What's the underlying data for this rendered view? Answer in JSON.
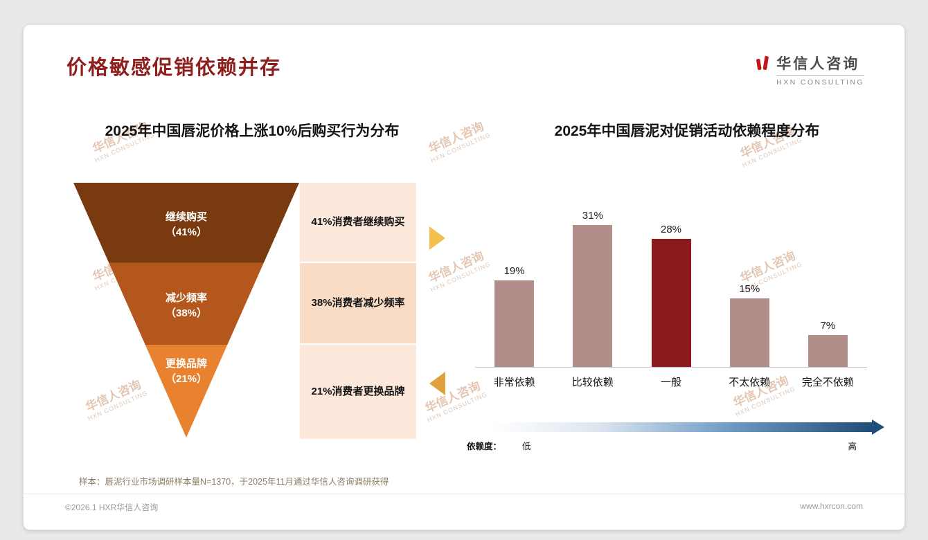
{
  "slide": {
    "title": "价格敏感促销依赖并存",
    "logo": {
      "name": "华信人咨询",
      "tagline": "HXN CONSULTING"
    },
    "watermark": {
      "line1": "华信人咨询",
      "line2": "HXN CONSULTING"
    },
    "sample_note": "样本：唇泥行业市场调研样本量N=1370，于2025年11月通过华信人咨询调研获得",
    "footer": {
      "copyright": "©2026.1 HXR华信人咨询",
      "website": "www.hxrcon.com"
    }
  },
  "colors": {
    "accent_red": "#8e1f1f",
    "connector_arrow_right": "#f2c04d",
    "connector_arrow_left": "#dfa23a",
    "gradient_mid": "#6f9cc6",
    "gradient_to": "#1f4e79",
    "card_background": "#ffffff",
    "page_background": "#e9e9e9"
  },
  "chart_data": [
    {
      "type": "funnel",
      "title": "2025年中国唇泥价格上涨10%后购买行为分布",
      "categories": [
        "继续购买",
        "减少频率",
        "更换品牌"
      ],
      "values": [
        41,
        38,
        21
      ],
      "unit": "%",
      "value_labels": [
        "（41%）",
        "（38%）",
        "（21%）"
      ],
      "segment_colors": [
        "#7a3a10",
        "#b4571c",
        "#e8822e"
      ],
      "annotations": [
        "41%消费者继续购买",
        "38%消费者减少频率",
        "21%消费者更换品牌"
      ],
      "annotation_bg": [
        "#fce9dc",
        "#f8dcc6",
        "#fce9dc"
      ]
    },
    {
      "type": "bar",
      "title": "2025年中国唇泥对促销活动依赖程度分布",
      "categories": [
        "非常依赖",
        "比较依赖",
        "一般",
        "不太依赖",
        "完全不依赖"
      ],
      "values": [
        19,
        31,
        28,
        15,
        7
      ],
      "unit": "%",
      "ylim": [
        0,
        35
      ],
      "grid": false,
      "legend_position": "none",
      "bar_color": "#b18e89",
      "highlight_category": "一般",
      "highlight_color": "#8c1a1d",
      "dependence_label": "依赖度：",
      "scale_low": "低",
      "scale_high": "高"
    }
  ]
}
